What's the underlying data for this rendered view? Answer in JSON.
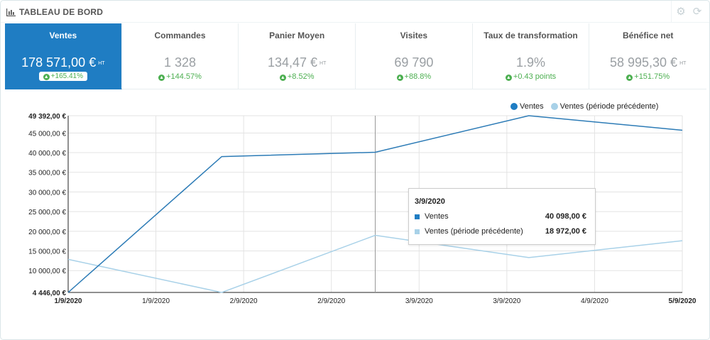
{
  "header": {
    "title": "TABLEAU DE BORD",
    "icon": "bar-chart-icon",
    "config_icon": "gear-icon",
    "refresh_icon": "refresh-icon"
  },
  "kpis": [
    {
      "label": "Ventes",
      "value": "178 571,00 €",
      "suffix": "HT",
      "delta": "+165.41%",
      "active": true
    },
    {
      "label": "Commandes",
      "value": "1 328",
      "suffix": "",
      "delta": "+144.57%"
    },
    {
      "label": "Panier Moyen",
      "value": "134,47 €",
      "suffix": "HT",
      "delta": "+8.52%"
    },
    {
      "label": "Visites",
      "value": "69 790",
      "suffix": "",
      "delta": "+88.8%"
    },
    {
      "label": "Taux de transformation",
      "value": "1.9%",
      "suffix": "",
      "delta": "+0.43 points"
    },
    {
      "label": "Bénéfice net",
      "value": "58 995,30 €",
      "suffix": "HT",
      "delta": "+151.75%"
    }
  ],
  "colors": {
    "accent": "#1f7dc3",
    "series_current": "#2c7bb6",
    "series_previous": "#a8d1e8",
    "positive": "#4caf50"
  },
  "legend": [
    {
      "name": "Ventes",
      "color": "#1f7dc3"
    },
    {
      "name": "Ventes (période précédente)",
      "color": "#a8d1e8"
    }
  ],
  "tooltip": {
    "title": "3/9/2020",
    "rows": [
      {
        "name": "Ventes",
        "value": "40 098,00 €",
        "color": "#1f7dc3"
      },
      {
        "name": "Ventes (période précédente)",
        "value": "18 972,00 €",
        "color": "#a8d1e8"
      }
    ]
  },
  "chart_data": {
    "type": "line",
    "x_ticks": [
      "1/9/2020",
      "1/9/2020",
      "2/9/2020",
      "2/9/2020",
      "3/9/2020",
      "3/9/2020",
      "4/9/2020",
      "5/9/2020"
    ],
    "y_ticks": [
      "4 446,00 €",
      "10 000,00 €",
      "15 000,00 €",
      "20 000,00 €",
      "25 000,00 €",
      "30 000,00 €",
      "35 000,00 €",
      "40 000,00 €",
      "45 000,00 €",
      "49 392,00 €"
    ],
    "ylim": [
      4446,
      49392
    ],
    "series": [
      {
        "name": "Ventes",
        "x": [
          0,
          1,
          2,
          3,
          4
        ],
        "values": [
          4446,
          39000,
          40098,
          49392,
          45700
        ]
      },
      {
        "name": "Ventes (période précédente)",
        "x": [
          0,
          1,
          2,
          3,
          4
        ],
        "values": [
          12850,
          4446,
          18972,
          13300,
          17600
        ]
      }
    ],
    "hover_x": 2,
    "legend_position": "top-right",
    "grid": true
  }
}
